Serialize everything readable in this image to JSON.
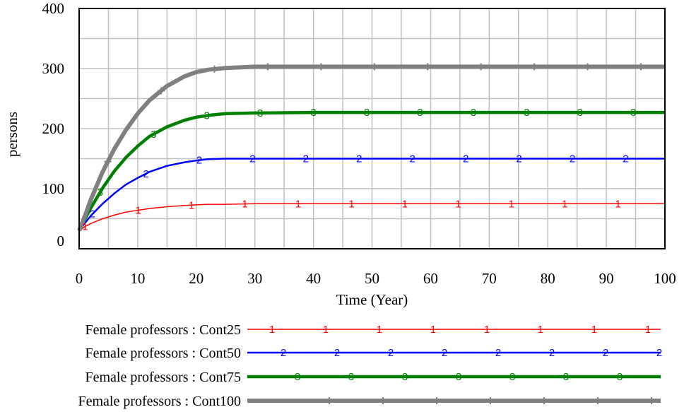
{
  "chart_data": {
    "type": "line",
    "xlabel": "Time (Year)",
    "ylabel": "persons",
    "xlim": [
      0,
      100
    ],
    "ylim": [
      0,
      400
    ],
    "xticks": [
      "0",
      "10",
      "20",
      "30",
      "40",
      "50",
      "60",
      "70",
      "80",
      "90",
      "100"
    ],
    "yticks": [
      "0",
      "100",
      "200",
      "300",
      "400"
    ],
    "grid": true,
    "legend_position": "bottom",
    "series": [
      {
        "name": "Female professors : Cont25",
        "marker": "1",
        "color": "#ff0000",
        "x": [
          0,
          1,
          2,
          4,
          6,
          8,
          10,
          12,
          15,
          18,
          20,
          22,
          25,
          30,
          40,
          50,
          60,
          70,
          80,
          90,
          100
        ],
        "values": [
          30,
          37,
          42,
          50,
          56,
          61,
          64,
          67,
          70,
          72,
          73,
          74,
          74,
          75,
          75,
          75,
          75,
          75,
          75,
          75,
          75
        ]
      },
      {
        "name": "Female professors : Cont50",
        "marker": "2",
        "color": "#0000ff",
        "x": [
          0,
          1,
          2,
          4,
          6,
          8,
          10,
          12,
          15,
          18,
          20,
          22,
          25,
          30,
          40,
          50,
          60,
          70,
          80,
          90,
          100
        ],
        "values": [
          30,
          43,
          55,
          75,
          92,
          107,
          118,
          128,
          138,
          144,
          147,
          149,
          150,
          150,
          150,
          150,
          150,
          150,
          150,
          150,
          150
        ]
      },
      {
        "name": "Female professors : Cont75",
        "marker": "3",
        "color": "#008000",
        "x": [
          0,
          1,
          2,
          4,
          6,
          8,
          10,
          12,
          15,
          18,
          20,
          22,
          25,
          30,
          40,
          50,
          60,
          70,
          80,
          90,
          100
        ],
        "values": [
          30,
          50,
          68,
          101,
          129,
          152,
          171,
          187,
          203,
          214,
          219,
          222,
          225,
          226,
          227,
          227,
          227,
          227,
          227,
          227,
          227
        ]
      },
      {
        "name": "Female professors : Cont100",
        "marker": "4",
        "color": "#808080",
        "x": [
          0,
          1,
          2,
          4,
          6,
          8,
          10,
          12,
          15,
          18,
          20,
          22,
          25,
          30,
          40,
          50,
          60,
          70,
          80,
          90,
          100
        ],
        "values": [
          30,
          55,
          82,
          128,
          166,
          198,
          225,
          247,
          271,
          287,
          294,
          298,
          301,
          303,
          303,
          303,
          303,
          303,
          303,
          303,
          303
        ]
      }
    ]
  }
}
